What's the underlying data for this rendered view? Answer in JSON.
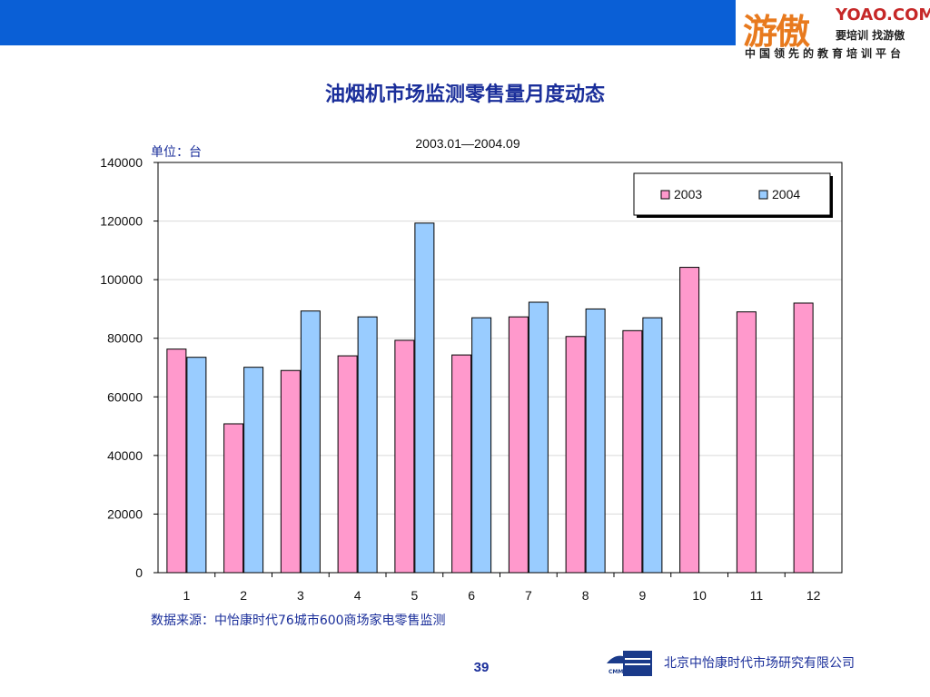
{
  "header": {
    "logo_main": "游傲",
    "logo_domain": "YOAO.COM",
    "logo_slogan": "要培训 找游傲",
    "logo_tagline": "中国领先的教育培训平台"
  },
  "footer": {
    "source": "数据来源：中怡康时代76城市600商场家电零售监测",
    "page_number": "39",
    "company": "北京中怡康时代市场研究有限公司",
    "company_logo_text": "CMM"
  },
  "colors": {
    "band": "#0a5fd6",
    "series_2003": "#ff99cc",
    "series_2004": "#99ccff"
  },
  "chart_data": {
    "type": "bar",
    "title": "油烟机市场监测零售量月度动态",
    "subtitle": "2003.01—2004.09",
    "ylabel": "单位：台",
    "xlabel": "",
    "categories": [
      "1",
      "2",
      "3",
      "4",
      "5",
      "6",
      "7",
      "8",
      "9",
      "10",
      "11",
      "12"
    ],
    "ylim": [
      0,
      140000
    ],
    "yticks": [
      "0",
      "20000",
      "40000",
      "60000",
      "80000",
      "100000",
      "120000",
      "140000"
    ],
    "grid": true,
    "legend_position": "top-right",
    "series": [
      {
        "name": "2003",
        "color": "#ff99cc",
        "values": [
          76300,
          50800,
          69000,
          74000,
          79300,
          74300,
          87300,
          80600,
          82600,
          104200,
          89000,
          92000
        ]
      },
      {
        "name": "2004",
        "color": "#99ccff",
        "values": [
          73500,
          70100,
          89300,
          87300,
          119300,
          87000,
          92300,
          90000,
          87000,
          null,
          null,
          null
        ]
      }
    ]
  }
}
